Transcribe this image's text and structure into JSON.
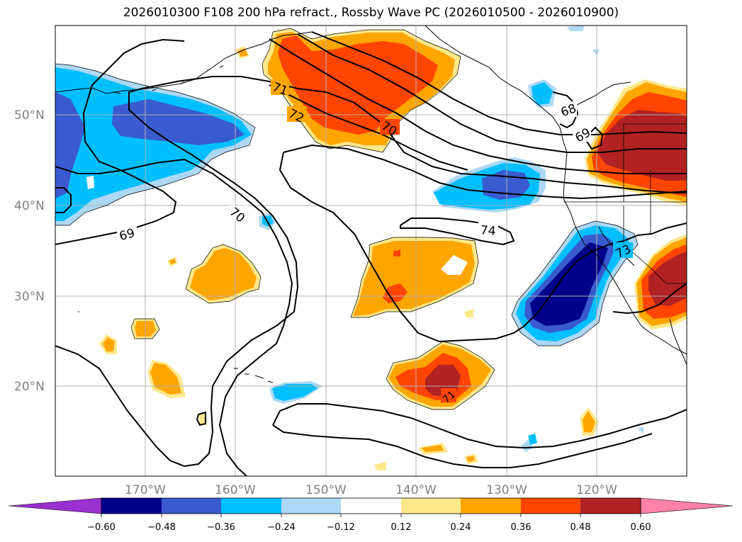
{
  "title": "2026010300 F108 200 hPa refract., Rossby Wave PC (2026010500 - 2026010900)",
  "lat_labels": [
    "50°N",
    "40°N",
    "30°N",
    "20°N"
  ],
  "lon_labels": [
    "170°W",
    "160°W",
    "150°W",
    "140°W",
    "130°W",
    "120°W"
  ],
  "contour_labels": [
    "71",
    "72",
    "70",
    "68",
    "69",
    "70",
    "69",
    "74",
    "73",
    "71"
  ],
  "colorbar": {
    "ticks": [
      "−0.60",
      "−0.48",
      "−0.36",
      "−0.24",
      "−0.12",
      "0.12",
      "0.24",
      "0.36",
      "0.48",
      "0.60"
    ],
    "colors": [
      "#9b30d0",
      "#00008b",
      "#3a5bcf",
      "#00bfff",
      "#add8f5",
      "#ffffff",
      "#ffe88a",
      "#ffa500",
      "#ff4500",
      "#b22222",
      "#ff80a8"
    ]
  },
  "map_colors": {
    "grid": "#b0b0b0",
    "contour": "#000000"
  }
}
